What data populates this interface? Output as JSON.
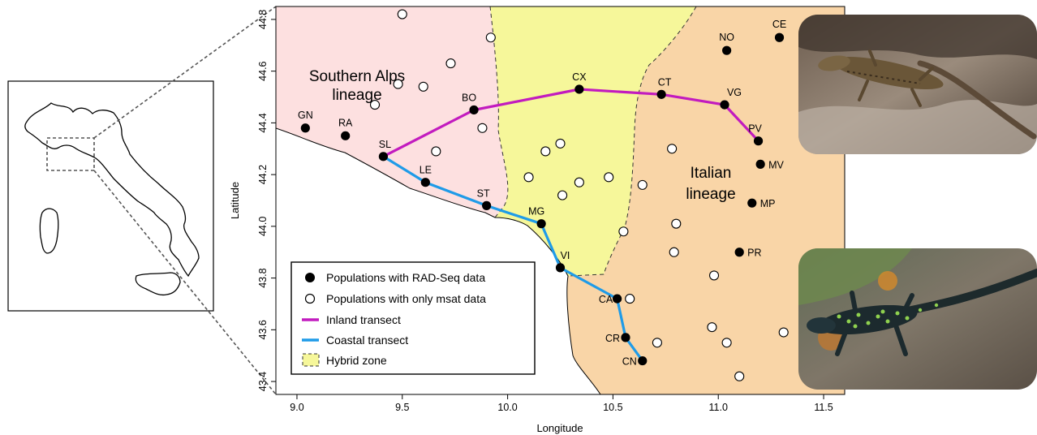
{
  "chart_data": {
    "type": "scatter",
    "xlabel": "Longitude",
    "ylabel": "Latitude",
    "xlim": [
      8.9,
      11.6
    ],
    "ylim": [
      43.35,
      44.85
    ],
    "xticks": [
      "9.0",
      "9.5",
      "10.0",
      "10.5",
      "11.0",
      "11.5"
    ],
    "yticks": [
      "43.4",
      "43.6",
      "43.8",
      "44.0",
      "44.2",
      "44.4",
      "44.6",
      "44.8"
    ],
    "region_labels": {
      "southern": "Southern Alps\nlineage",
      "italian": "Italian\nlineage"
    },
    "rad_populations": [
      {
        "label": "GN",
        "lon": 9.04,
        "lat": 44.38
      },
      {
        "label": "RA",
        "lon": 9.23,
        "lat": 44.35
      },
      {
        "label": "SL",
        "lon": 9.41,
        "lat": 44.27
      },
      {
        "label": "LE",
        "lon": 9.61,
        "lat": 44.17
      },
      {
        "label": "ST",
        "lon": 9.9,
        "lat": 44.08
      },
      {
        "label": "MG",
        "lon": 10.16,
        "lat": 44.01
      },
      {
        "label": "VI",
        "lon": 10.25,
        "lat": 43.84
      },
      {
        "label": "CA",
        "lon": 10.52,
        "lat": 43.72
      },
      {
        "label": "CR",
        "lon": 10.56,
        "lat": 43.57
      },
      {
        "label": "CN",
        "lon": 10.64,
        "lat": 43.48
      },
      {
        "label": "BO",
        "lon": 9.84,
        "lat": 44.45
      },
      {
        "label": "CX",
        "lon": 10.34,
        "lat": 44.53
      },
      {
        "label": "CT",
        "lon": 10.73,
        "lat": 44.51
      },
      {
        "label": "VG",
        "lon": 11.03,
        "lat": 44.47
      },
      {
        "label": "PV",
        "lon": 11.19,
        "lat": 44.33
      },
      {
        "label": "NO",
        "lon": 11.04,
        "lat": 44.68
      },
      {
        "label": "CE",
        "lon": 11.29,
        "lat": 44.73
      },
      {
        "label": "MV",
        "lon": 11.2,
        "lat": 44.24
      },
      {
        "label": "MP",
        "lon": 11.16,
        "lat": 44.09
      },
      {
        "label": "PR",
        "lon": 11.1,
        "lat": 43.9
      }
    ],
    "msat_populations": [
      {
        "lon": 9.5,
        "lat": 44.82
      },
      {
        "lon": 9.92,
        "lat": 44.73
      },
      {
        "lon": 9.73,
        "lat": 44.63
      },
      {
        "lon": 9.48,
        "lat": 44.55
      },
      {
        "lon": 9.6,
        "lat": 44.54
      },
      {
        "lon": 9.37,
        "lat": 44.47
      },
      {
        "lon": 9.88,
        "lat": 44.38
      },
      {
        "lon": 9.66,
        "lat": 44.29
      },
      {
        "lon": 10.18,
        "lat": 44.29
      },
      {
        "lon": 10.25,
        "lat": 44.32
      },
      {
        "lon": 10.1,
        "lat": 44.19
      },
      {
        "lon": 10.34,
        "lat": 44.17
      },
      {
        "lon": 10.48,
        "lat": 44.19
      },
      {
        "lon": 10.64,
        "lat": 44.16
      },
      {
        "lon": 10.26,
        "lat": 44.12
      },
      {
        "lon": 10.78,
        "lat": 44.3
      },
      {
        "lon": 10.8,
        "lat": 44.01
      },
      {
        "lon": 10.55,
        "lat": 43.98
      },
      {
        "lon": 10.79,
        "lat": 43.9
      },
      {
        "lon": 10.98,
        "lat": 43.81
      },
      {
        "lon": 10.58,
        "lat": 43.72
      },
      {
        "lon": 10.97,
        "lat": 43.61
      },
      {
        "lon": 11.04,
        "lat": 43.55
      },
      {
        "lon": 10.71,
        "lat": 43.55
      },
      {
        "lon": 11.31,
        "lat": 43.59
      },
      {
        "lon": 11.1,
        "lat": 43.42
      }
    ],
    "inland_transect": [
      "SL",
      "BO",
      "CX",
      "CT",
      "VG",
      "PV"
    ],
    "coastal_transect": [
      "SL",
      "LE",
      "ST",
      "MG",
      "VI",
      "CA",
      "CR",
      "CN"
    ],
    "legend": [
      {
        "key": "rad",
        "label": "Populations with RAD-Seq data"
      },
      {
        "key": "msat",
        "label": "Populations with only msat data"
      },
      {
        "key": "inland",
        "label": "Inland transect"
      },
      {
        "key": "coastal",
        "label": "Coastal transect"
      },
      {
        "key": "hybrid",
        "label": "Hybrid zone"
      }
    ],
    "legend_position": "bottom-left",
    "colors": {
      "southern_alps": "#fde0e0",
      "hybrid_zone": "#f6f79a",
      "italian": "#f9d5a7",
      "inland": "#c21bbf",
      "coastal": "#1f9be8"
    }
  }
}
